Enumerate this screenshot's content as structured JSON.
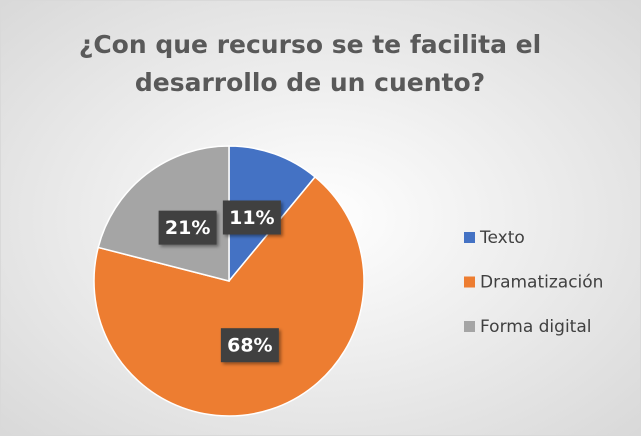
{
  "chart_data": {
    "type": "pie",
    "title": "¿Con que recurso se te facilita el desarrollo de un cuento?",
    "categories": [
      "Texto",
      "Dramatización",
      "Forma digital"
    ],
    "values": [
      11,
      68,
      21
    ],
    "value_labels": [
      "11%",
      "68%",
      "21%"
    ],
    "colors": [
      "#4472c4",
      "#ed7d31",
      "#a5a5a5"
    ],
    "legend": "right"
  }
}
